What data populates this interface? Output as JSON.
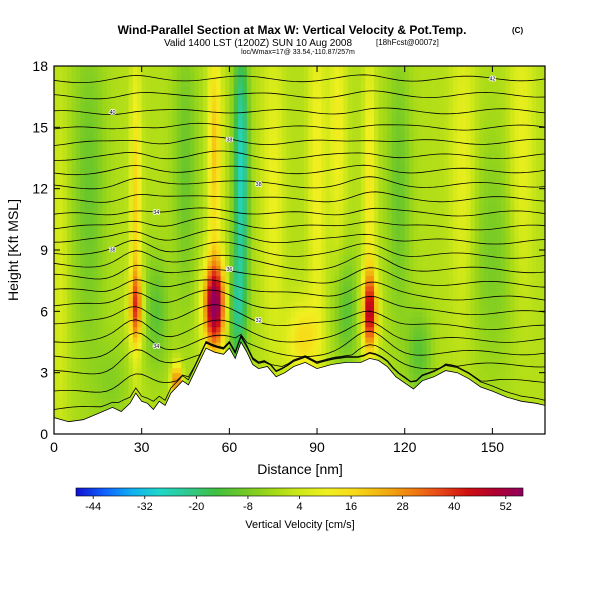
{
  "chart_data": {
    "type": "heatmap",
    "title": "Wind-Parallel Section at Max W: Vertical Velocity & Pot.Temp.",
    "title_mark": "(C)",
    "subtitle_line1": "Valid 1400 LST (1200Z) SUN 10 Aug 2008",
    "subtitle_tag": "[18hFcst@0007z]",
    "subtitle_line2": "loc/Wmax=17@ 33.54,-110.87/257m",
    "xlabel": "Distance [nm]",
    "ylabel": "Height [Kft MSL]",
    "xlim": [
      0,
      168
    ],
    "ylim": [
      0,
      18
    ],
    "x_ticks": [
      0,
      30,
      60,
      90,
      120,
      150
    ],
    "y_ticks": [
      0,
      3,
      6,
      9,
      12,
      15,
      18
    ],
    "grid": false,
    "colorbar": {
      "label": "Vertical Velocity [cm/s]",
      "tick_labels": [
        "-44",
        "-32",
        "-20",
        "-8",
        "4",
        "16",
        "28",
        "40",
        "52"
      ],
      "tick_values": [
        -44,
        -32,
        -20,
        -8,
        4,
        16,
        28,
        40,
        52
      ],
      "range": [
        -48,
        56
      ],
      "colors": [
        "#1010d0",
        "#1060ff",
        "#10b0f0",
        "#20d8c8",
        "#30c890",
        "#40c040",
        "#70c828",
        "#a0d818",
        "#d0e818",
        "#f0f020",
        "#f8d818",
        "#f0b010",
        "#f08010",
        "#e84818",
        "#d01010",
        "#b00030",
        "#900060"
      ]
    },
    "terrain_kft": [
      [
        0,
        0.8
      ],
      [
        5,
        0.6
      ],
      [
        10,
        0.7
      ],
      [
        15,
        1.0
      ],
      [
        20,
        1.3
      ],
      [
        23,
        1.1
      ],
      [
        26,
        1.5
      ],
      [
        28,
        2.0
      ],
      [
        30,
        1.6
      ],
      [
        32,
        1.5
      ],
      [
        34,
        1.2
      ],
      [
        36,
        1.6
      ],
      [
        38,
        1.4
      ],
      [
        40,
        2.0
      ],
      [
        42,
        2.3
      ],
      [
        44,
        2.6
      ],
      [
        46,
        2.4
      ],
      [
        48,
        3.0
      ],
      [
        50,
        3.6
      ],
      [
        52,
        4.2
      ],
      [
        55,
        4.0
      ],
      [
        58,
        3.9
      ],
      [
        60,
        4.2
      ],
      [
        62,
        3.7
      ],
      [
        64,
        4.5
      ],
      [
        66,
        4.0
      ],
      [
        68,
        3.4
      ],
      [
        70,
        3.2
      ],
      [
        73,
        3.3
      ],
      [
        76,
        2.8
      ],
      [
        79,
        3.0
      ],
      [
        82,
        3.3
      ],
      [
        86,
        3.5
      ],
      [
        90,
        3.2
      ],
      [
        95,
        3.4
      ],
      [
        100,
        3.5
      ],
      [
        105,
        3.5
      ],
      [
        108,
        3.7
      ],
      [
        111,
        3.6
      ],
      [
        114,
        3.3
      ],
      [
        117,
        2.8
      ],
      [
        120,
        2.5
      ],
      [
        123,
        2.2
      ],
      [
        126,
        2.6
      ],
      [
        130,
        2.8
      ],
      [
        134,
        3.1
      ],
      [
        138,
        3.0
      ],
      [
        142,
        2.7
      ],
      [
        146,
        2.3
      ],
      [
        150,
        2.1
      ],
      [
        155,
        1.8
      ],
      [
        160,
        1.6
      ],
      [
        165,
        1.5
      ],
      [
        168,
        1.4
      ]
    ],
    "w_features": [
      {
        "x": 55,
        "y": 6.3,
        "sx": 2.6,
        "sy": 1.5,
        "w": 58
      },
      {
        "x": 108,
        "y": 6.0,
        "sx": 1.8,
        "sy": 1.3,
        "w": 44
      },
      {
        "x": 28,
        "y": 6.2,
        "sx": 1.6,
        "sy": 1.2,
        "w": 30
      },
      {
        "x": 28,
        "y": 11.0,
        "sx": 1.3,
        "sy": 5.0,
        "w": 18
      },
      {
        "x": 55,
        "y": 14.0,
        "sx": 1.6,
        "sy": 4.0,
        "w": 20
      },
      {
        "x": 108,
        "y": 12.0,
        "sx": 1.4,
        "sy": 5.0,
        "w": 14
      },
      {
        "x": 42,
        "y": 2.6,
        "sx": 1.2,
        "sy": 0.6,
        "w": 34
      },
      {
        "x": 85,
        "y": 4.7,
        "sx": 4.0,
        "sy": 1.3,
        "w": 16
      },
      {
        "x": 75,
        "y": 12.0,
        "sx": 2.5,
        "sy": 5.0,
        "w": 10
      },
      {
        "x": 90,
        "y": 13.0,
        "sx": 2.0,
        "sy": 6.0,
        "w": 12
      },
      {
        "x": 97,
        "y": 15.0,
        "sx": 2.0,
        "sy": 4.0,
        "w": 12
      },
      {
        "x": 140,
        "y": 13.0,
        "sx": 3.0,
        "sy": 5.0,
        "w": 10
      },
      {
        "x": 160,
        "y": 14.0,
        "sx": 3.0,
        "sy": 5.0,
        "w": 10
      },
      {
        "x": 64,
        "y": 13.0,
        "sx": 1.8,
        "sy": 5.0,
        "w": -28
      },
      {
        "x": 45,
        "y": 13.0,
        "sx": 3.0,
        "sy": 5.0,
        "w": -10
      },
      {
        "x": 12,
        "y": 12.0,
        "sx": 4.0,
        "sy": 6.0,
        "w": -10
      },
      {
        "x": 118,
        "y": 12.0,
        "sx": 3.0,
        "sy": 5.0,
        "w": -10
      },
      {
        "x": 150,
        "y": 9.0,
        "sx": 6.0,
        "sy": 4.0,
        "w": -8
      },
      {
        "x": 62,
        "y": 6.0,
        "sx": 2.5,
        "sy": 2.0,
        "w": -16
      },
      {
        "x": 100,
        "y": 6.0,
        "sx": 3.0,
        "sy": 2.0,
        "w": -12
      },
      {
        "x": 35,
        "y": 6.0,
        "sx": 3.0,
        "sy": 2.0,
        "w": -12
      },
      {
        "x": 20,
        "y": 2.5,
        "sx": 4.0,
        "sy": 1.5,
        "w": -6
      },
      {
        "x": 125,
        "y": 4.0,
        "sx": 3.0,
        "sy": 1.5,
        "w": -12
      },
      {
        "x": 2,
        "y": 8.0,
        "sx": 2.0,
        "sy": 6.0,
        "w": 6
      }
    ],
    "theta_contours": [
      {
        "left": 1.2,
        "right": 1.6,
        "bump": 0.7,
        "label": ""
      },
      {
        "left": 2.0,
        "right": 2.6,
        "bump": 0.9,
        "label": ""
      },
      {
        "left": 3.0,
        "right": 3.4,
        "bump": 1.0,
        "label": ""
      },
      {
        "left": 3.8,
        "right": 4.0,
        "bump": 1.0,
        "label": "34"
      },
      {
        "left": 4.6,
        "right": 4.6,
        "bump": 0.9,
        "label": ""
      },
      {
        "left": 5.5,
        "right": 5.2,
        "bump": 0.8,
        "label": "32"
      },
      {
        "left": 6.3,
        "right": 5.9,
        "bump": 0.8,
        "label": ""
      },
      {
        "left": 7.0,
        "right": 6.6,
        "bump": 0.7,
        "label": ""
      },
      {
        "left": 7.7,
        "right": 7.3,
        "bump": 0.6,
        "label": "36"
      },
      {
        "left": 8.3,
        "right": 8.0,
        "bump": 0.6,
        "label": ""
      },
      {
        "left": 8.9,
        "right": 8.7,
        "bump": 0.5,
        "label": "38"
      },
      {
        "left": 9.5,
        "right": 9.4,
        "bump": 0.4,
        "label": ""
      },
      {
        "left": 10.1,
        "right": 10.1,
        "bump": 0.4,
        "label": ""
      },
      {
        "left": 10.7,
        "right": 10.8,
        "bump": 0.3,
        "label": "34"
      },
      {
        "left": 11.4,
        "right": 11.5,
        "bump": 0.3,
        "label": ""
      },
      {
        "left": 12.1,
        "right": 12.2,
        "bump": 0.3,
        "label": "38"
      },
      {
        "left": 12.8,
        "right": 12.9,
        "bump": 0.2,
        "label": ""
      },
      {
        "left": 13.5,
        "right": 13.6,
        "bump": 0.2,
        "label": ""
      },
      {
        "left": 14.2,
        "right": 14.3,
        "bump": 0.2,
        "label": "38"
      },
      {
        "left": 14.9,
        "right": 15.0,
        "bump": 0.2,
        "label": ""
      },
      {
        "left": 15.7,
        "right": 15.8,
        "bump": 0.1,
        "label": "40"
      },
      {
        "left": 16.5,
        "right": 16.6,
        "bump": 0.1,
        "label": ""
      },
      {
        "left": 17.3,
        "right": 17.4,
        "bump": 0.1,
        "label": "42"
      }
    ]
  }
}
